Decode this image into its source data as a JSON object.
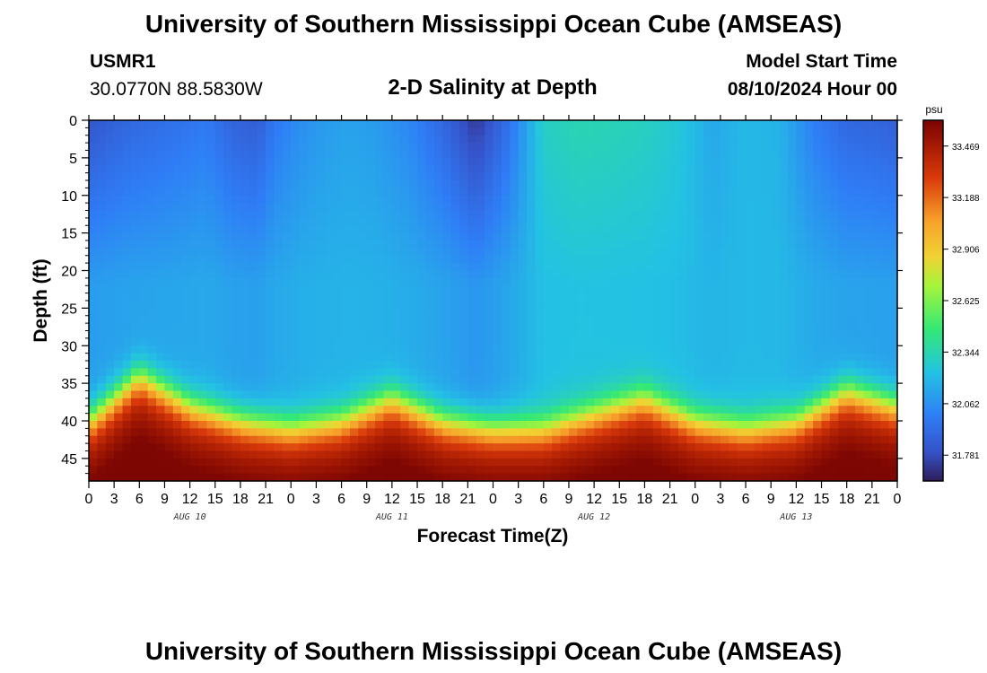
{
  "header": {
    "title": "University of Southern Mississippi Ocean Cube (AMSEAS)",
    "station_id": "USMR1",
    "station_coords": "30.0770N  88.5830W",
    "chart_title": "2-D Salinity at Depth",
    "model_start_label": "Model Start Time",
    "model_start_value": "08/10/2024 Hour 00"
  },
  "footer": {
    "title": "University of Southern Mississippi Ocean Cube (AMSEAS)"
  },
  "colors": {
    "low": "#2f1d59",
    "mid_low": "#2f7df6",
    "mid": "#33e877",
    "mid_high": "#a4f43c",
    "high": "#f7a22a",
    "max": "#7a0403"
  },
  "chart_data": {
    "type": "heatmap",
    "title": "2-D Salinity at Depth",
    "xlabel": "Forecast Time(Z)",
    "ylabel": "Depth (ft)",
    "x_tick_labels": [
      "0",
      "3",
      "6",
      "9",
      "12",
      "15",
      "18",
      "21",
      "0",
      "3",
      "6",
      "9",
      "12",
      "15",
      "18",
      "21",
      "0",
      "3",
      "6",
      "9",
      "12",
      "15",
      "18",
      "21",
      "0",
      "3",
      "6",
      "9",
      "12",
      "15",
      "18",
      "21",
      "0"
    ],
    "x_range_hours": [
      0,
      96
    ],
    "day_labels": [
      {
        "label": "AUG 10",
        "hour": 12
      },
      {
        "label": "AUG 11",
        "hour": 36
      },
      {
        "label": "AUG 12",
        "hour": 60
      },
      {
        "label": "AUG 13",
        "hour": 84
      }
    ],
    "y_ticks": [
      0,
      5,
      10,
      15,
      20,
      25,
      30,
      35,
      40,
      45
    ],
    "y_range_ft": [
      0,
      48
    ],
    "y_inverted": true,
    "colorbar": {
      "unit": "psu",
      "range": [
        31.64,
        33.61
      ],
      "tick_values": [
        33.469,
        33.188,
        32.906,
        32.625,
        32.344,
        32.062,
        31.781
      ],
      "tick_labels": [
        "33.469",
        "33.188",
        "32.906",
        "32.625",
        "32.344",
        "32.062",
        "31.781"
      ]
    },
    "grid": false,
    "series": [
      {
        "hours": [
          0,
          2,
          5,
          8,
          11,
          14,
          17,
          20,
          22,
          25,
          28,
          31,
          34,
          38,
          42,
          46,
          50,
          54,
          58,
          62,
          66,
          70,
          74,
          78,
          82,
          86,
          90,
          94,
          96
        ],
        "top_band_psu_surface": [
          31.82,
          31.85,
          31.9,
          31.92,
          31.95,
          31.98,
          31.88,
          31.85,
          31.97,
          32.05,
          32.1,
          32.12,
          32.1,
          32.03,
          31.9,
          31.72,
          31.95,
          32.3,
          32.34,
          32.33,
          32.31,
          32.26,
          32.14,
          32.2,
          32.18,
          32.0,
          31.9,
          31.88,
          31.86
        ]
      },
      {
        "hours": [
          0,
          6,
          12,
          18,
          24,
          30,
          36,
          42,
          48,
          54,
          60,
          66,
          72,
          78,
          84,
          90,
          96
        ],
        "halocline_depth_ft": [
          40,
          34,
          38,
          40,
          41,
          40,
          37,
          40,
          41,
          41,
          39,
          37,
          40,
          41,
          40,
          36,
          38
        ]
      }
    ]
  }
}
